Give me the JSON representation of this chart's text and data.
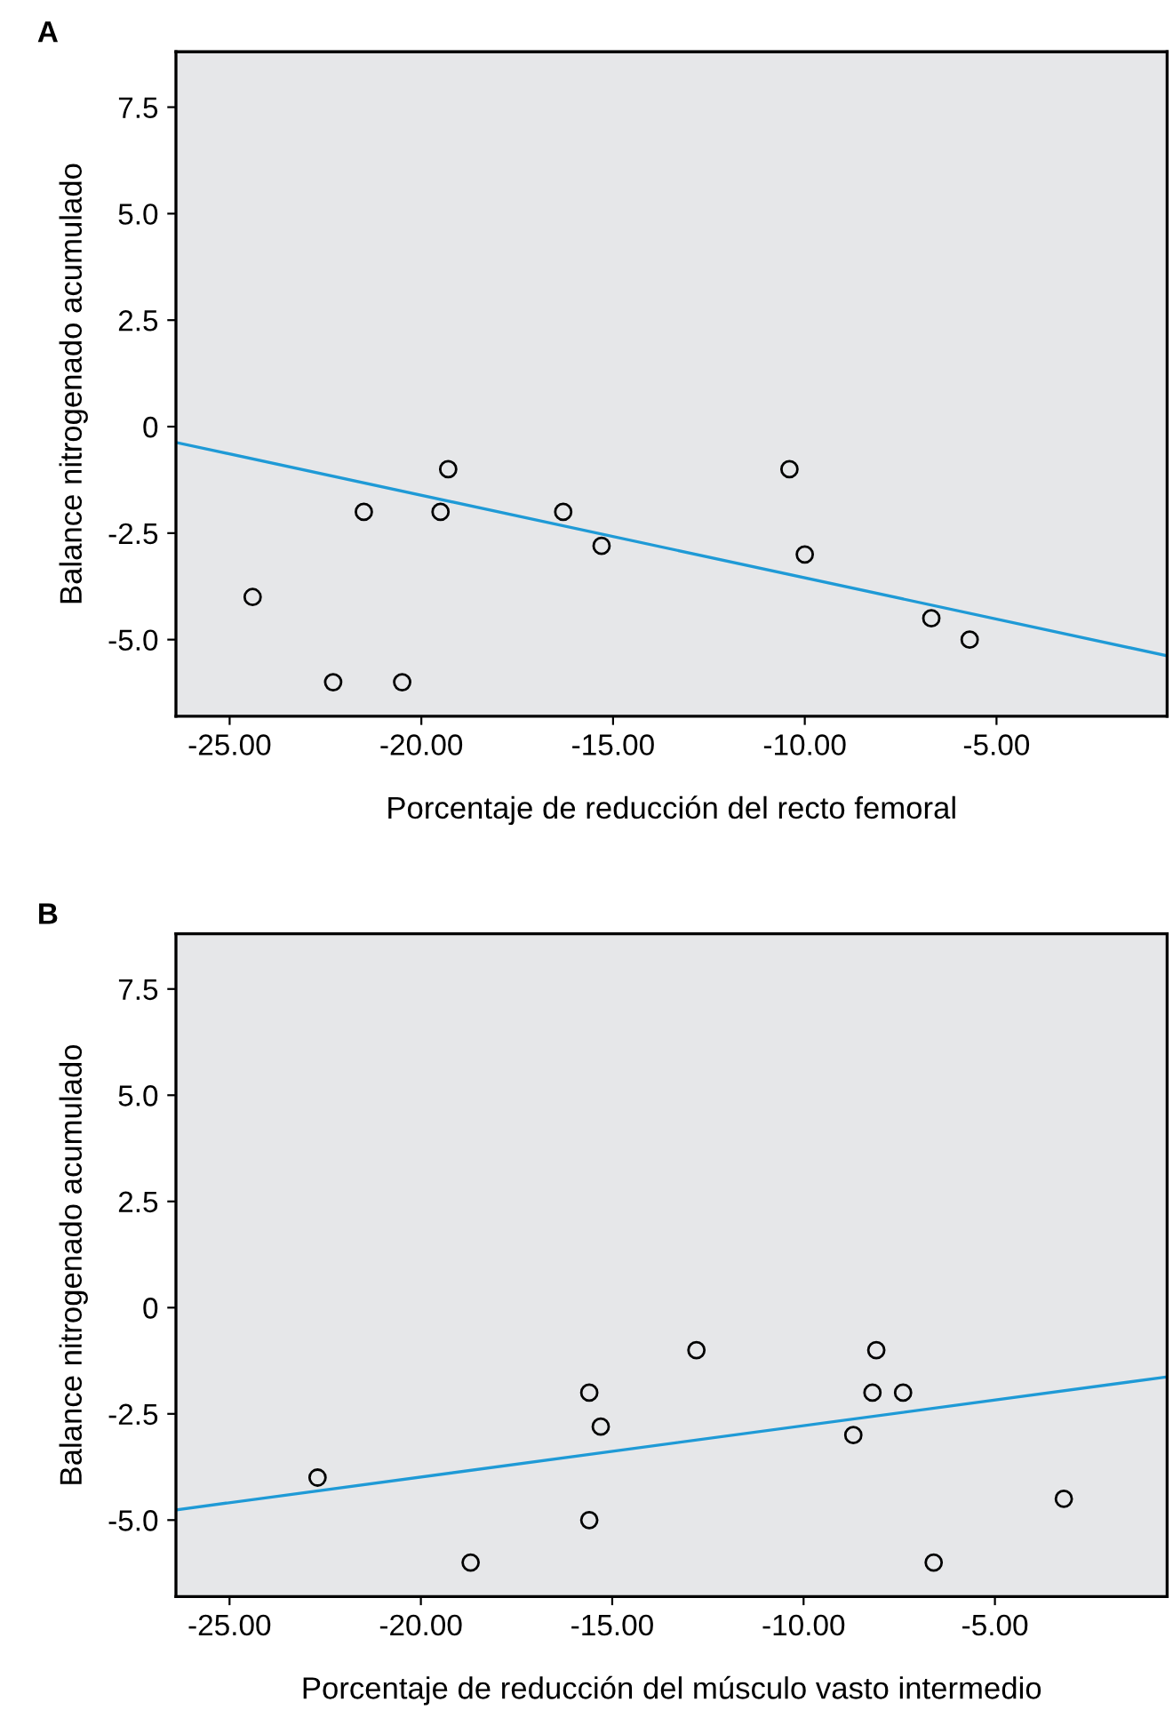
{
  "chart_data": [
    {
      "type": "scatter",
      "title": "A",
      "xlabel": "Porcentaje de reducción del recto femoral",
      "ylabel": "Balance nitrogenado acumulado",
      "xlim": [
        -26.4,
        -0.55
      ],
      "ylim": [
        -6.8,
        8.8
      ],
      "xticks": [
        {
          "value": -25,
          "label": "-25.00"
        },
        {
          "value": -20,
          "label": "-20.00"
        },
        {
          "value": -15,
          "label": "-15.00"
        },
        {
          "value": -10,
          "label": "-10.00"
        },
        {
          "value": -5,
          "label": "-5.00"
        }
      ],
      "yticks": [
        {
          "value": -5,
          "label": "-5.0"
        },
        {
          "value": -2.5,
          "label": "-2.5"
        },
        0,
        {
          "value": 2.5,
          "label": "2.5"
        },
        {
          "value": 5,
          "label": "5.0"
        },
        {
          "value": 7.5,
          "label": "7.5"
        }
      ],
      "grid": false,
      "series": [
        {
          "marker": "circle",
          "color": "#000000",
          "x": [
            -24.4,
            -22.3,
            -21.5,
            -20.5,
            -19.5,
            -19.3,
            -16.3,
            -15.3,
            -10.4,
            -10.0,
            -6.7,
            -5.7
          ],
          "values": [
            -4.0,
            -6.0,
            -2.0,
            -6.0,
            -2.0,
            -1.0,
            -2.0,
            -2.8,
            -1.0,
            -3.0,
            -4.5,
            -5.0
          ]
        },
        {
          "type": "line",
          "color": "#1f9ad6",
          "x": [
            -26.4,
            -0.55
          ],
          "values": [
            -0.37,
            -5.38
          ]
        }
      ]
    },
    {
      "type": "scatter",
      "title": "B",
      "xlabel": "Porcentaje de reducción del músculo vasto intermedio",
      "ylabel": "Balance nitrogenado acumulado",
      "xlim": [
        -26.4,
        -0.5
      ],
      "ylim": [
        -6.8,
        8.8
      ],
      "xticks": [
        {
          "value": -25,
          "label": "-25.00"
        },
        {
          "value": -20,
          "label": "-20.00"
        },
        {
          "value": -15,
          "label": "-15.00"
        },
        {
          "value": -10,
          "label": "-10.00"
        },
        {
          "value": -5,
          "label": "-5.00"
        }
      ],
      "yticks": [
        {
          "value": -5,
          "label": "-5.0"
        },
        {
          "value": -2.5,
          "label": "-2.5"
        },
        0,
        {
          "value": 2.5,
          "label": "2.5"
        },
        {
          "value": 5,
          "label": "5.0"
        },
        {
          "value": 7.5,
          "label": "7.5"
        }
      ],
      "grid": false,
      "series": [
        {
          "marker": "circle",
          "color": "#000000",
          "x": [
            -22.7,
            -18.7,
            -15.6,
            -15.3,
            -15.6,
            -12.8,
            -8.7,
            -8.2,
            -8.1,
            -7.4,
            -6.6,
            -3.2
          ],
          "values": [
            -4.0,
            -6.0,
            -2.0,
            -2.8,
            -5.0,
            -1.0,
            -3.0,
            -2.0,
            -1.0,
            -2.0,
            -6.0,
            -4.5
          ]
        },
        {
          "type": "line",
          "color": "#1f9ad6",
          "x": [
            -26.4,
            -0.5
          ],
          "values": [
            -4.76,
            -1.63
          ]
        }
      ]
    }
  ]
}
